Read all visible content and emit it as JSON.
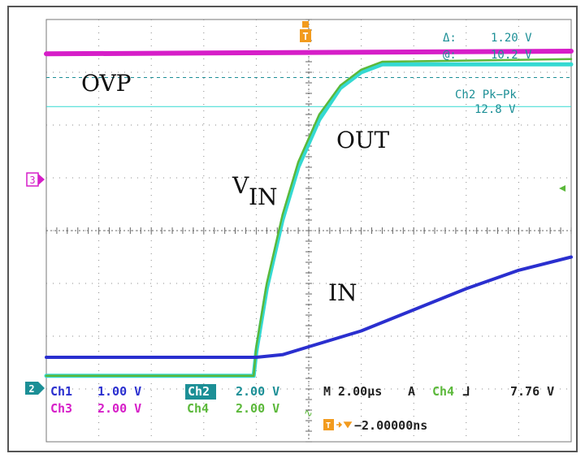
{
  "chart_data": {
    "type": "line",
    "title": "",
    "xlabel": "",
    "ylabel": "",
    "grid": true,
    "divisions": {
      "x": 10,
      "y": 8
    },
    "x_unit": "µs",
    "time_per_div": 2.0,
    "xlim": [
      -10,
      10
    ],
    "ylim_div": [
      -4,
      4
    ],
    "annotations": {
      "ovp": "OVP",
      "out": "OUT",
      "vin_main": "V",
      "vin_sub": "IN",
      "in": "IN"
    },
    "markers": {
      "ch3_marker": "3",
      "ch2_marker": "2",
      "trigger_marker": "T"
    },
    "series": [
      {
        "name": "Ch3",
        "color": "#d61ec8",
        "points": [
          [
            -10,
            3.35
          ],
          [
            10,
            3.4
          ]
        ]
      },
      {
        "name": "Ch2",
        "color": "#34d9d2",
        "points": [
          [
            -10,
            -2.75
          ],
          [
            -2.1,
            -2.75
          ],
          [
            -2.0,
            -2.3
          ],
          [
            -1.6,
            -1.1
          ],
          [
            -1.0,
            0.2
          ],
          [
            -0.4,
            1.2
          ],
          [
            0.4,
            2.1
          ],
          [
            1.2,
            2.7
          ],
          [
            2.0,
            3.0
          ],
          [
            2.8,
            3.15
          ],
          [
            10,
            3.15
          ]
        ]
      },
      {
        "name": "Ch4",
        "color": "#5bb83a",
        "points": [
          [
            -10,
            -2.75
          ],
          [
            -2.1,
            -2.75
          ],
          [
            -2.0,
            -2.2
          ],
          [
            -1.6,
            -1.0
          ],
          [
            -1.0,
            0.3
          ],
          [
            -0.4,
            1.3
          ],
          [
            0.4,
            2.2
          ],
          [
            1.2,
            2.75
          ],
          [
            2.0,
            3.05
          ],
          [
            2.8,
            3.2
          ],
          [
            10,
            3.25
          ]
        ]
      },
      {
        "name": "Ch1",
        "color": "#2a2fcf",
        "points": [
          [
            -10,
            -2.4
          ],
          [
            -2.0,
            -2.4
          ],
          [
            -1.0,
            -2.35
          ],
          [
            0,
            -2.2
          ],
          [
            2,
            -1.9
          ],
          [
            4,
            -1.5
          ],
          [
            6,
            -1.1
          ],
          [
            8,
            -0.75
          ],
          [
            10,
            -0.5
          ]
        ]
      }
    ],
    "cursor_line_cyan_div": 2.35,
    "dashed_cursor_div": 2.9,
    "measurements": {
      "delta_label": "Δ:",
      "delta_value": "1.20 V",
      "at_label": "@:",
      "at_value": "10.2 V",
      "pkpk_label": "Ch2 Pk−Pk",
      "pkpk_value": "12.8 V"
    },
    "readouts": {
      "ch1_label": "Ch1",
      "ch1_scale": "1.00 V",
      "ch2_label": "Ch2",
      "ch2_scale": "2.00 V",
      "ch3_label": "Ch3",
      "ch3_scale": "2.00 V",
      "ch4_label": "Ch4",
      "ch4_scale": "2.00 V",
      "timebase": "M 2.00µs",
      "trigger_mode": "A",
      "trigger_source": "Ch4",
      "trigger_slope": "⅃",
      "trigger_level": "7.76 V",
      "trigger_pos": "−2.00000ns",
      "trig_icon_label": "T",
      "bw_symbol": "∿"
    },
    "colors": {
      "ch1": "#2a2fcf",
      "ch2": "#34d9d2",
      "ch3": "#d61ec8",
      "ch4": "#5bb83a",
      "trigger": "#f29b1e",
      "ch2_badge_bg": "#1c8f96"
    }
  }
}
